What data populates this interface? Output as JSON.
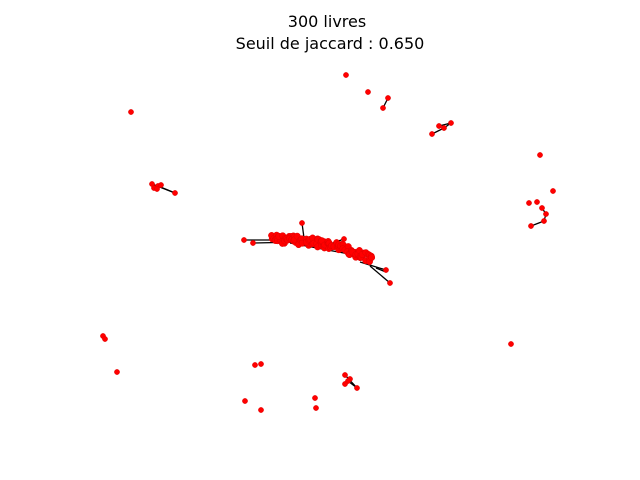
{
  "figure": {
    "title_line1": "300 livres",
    "title_line2": "Seuil de jaccard : 0.650"
  },
  "colors": {
    "node": "#ff0000",
    "edge": "#000000",
    "background": "#ffffff"
  }
}
